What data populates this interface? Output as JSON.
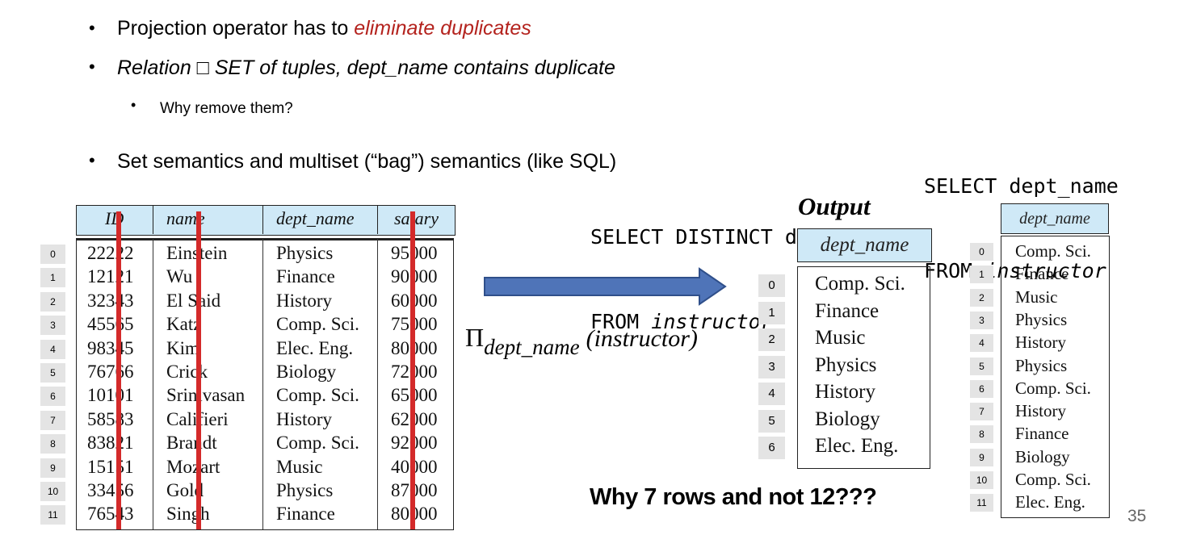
{
  "bullets": [
    {
      "text_before": "Projection operator has to ",
      "emphasis": "eliminate duplicates"
    },
    {
      "text": "Relation □ SET of tuples, dept_name contains duplicate"
    },
    {
      "text": "Why remove them?"
    },
    {
      "text": "Set semantics and multiset (“bag”) semantics (like SQL)"
    }
  ],
  "sql_all": {
    "line1": "SELECT dept_name",
    "line2_kw": "FROM ",
    "line2_table": "instructor"
  },
  "sql_distinct": {
    "line1": "SELECT DISTINCT dept_name",
    "line2_kw": "FROM ",
    "line2_table": "instructor",
    "output_label": "Output"
  },
  "projection": {
    "symbol": "Π",
    "subscript": "dept_name",
    "argument": "(instructor)"
  },
  "instructor_table": {
    "headers": [
      "ID",
      "name",
      "dept_name",
      "salary"
    ],
    "row_index": [
      "0",
      "1",
      "2",
      "3",
      "4",
      "5",
      "6",
      "7",
      "8",
      "9",
      "10",
      "11"
    ],
    "rows": [
      [
        "22222",
        "Einstein",
        "Physics",
        "95000"
      ],
      [
        "12121",
        "Wu",
        "Finance",
        "90000"
      ],
      [
        "32343",
        "El Said",
        "History",
        "60000"
      ],
      [
        "45565",
        "Katz",
        "Comp. Sci.",
        "75000"
      ],
      [
        "98345",
        "Kim",
        "Elec. Eng.",
        "80000"
      ],
      [
        "76766",
        "Crick",
        "Biology",
        "72000"
      ],
      [
        "10101",
        "Srinivasan",
        "Comp. Sci.",
        "65000"
      ],
      [
        "58583",
        "Califieri",
        "History",
        "62000"
      ],
      [
        "83821",
        "Brandt",
        "Comp. Sci.",
        "92000"
      ],
      [
        "15151",
        "Mozart",
        "Music",
        "40000"
      ],
      [
        "33456",
        "Gold",
        "Physics",
        "87000"
      ],
      [
        "76543",
        "Singh",
        "Finance",
        "80000"
      ]
    ]
  },
  "distinct_result": {
    "header": "dept_name",
    "row_index": [
      "0",
      "1",
      "2",
      "3",
      "4",
      "5",
      "6"
    ],
    "values": [
      "Comp. Sci.",
      "Finance",
      "Music",
      "Physics",
      "History",
      "Biology",
      "Elec. Eng."
    ]
  },
  "bag_result": {
    "header": "dept_name",
    "row_index": [
      "0",
      "1",
      "2",
      "3",
      "4",
      "5",
      "6",
      "7",
      "8",
      "9",
      "10",
      "11"
    ],
    "values": [
      "Comp. Sci.",
      "Finance",
      "Music",
      "Physics",
      "History",
      "Physics",
      "Comp. Sci.",
      "History",
      "Finance",
      "Biology",
      "Comp. Sci.",
      "Elec. Eng."
    ]
  },
  "question": "Why 7 rows and not 12???",
  "page_number": "35",
  "colors": {
    "emphasis": "#b4231e",
    "header_fill": "#cfe9f7",
    "strike": "#d42a2a",
    "arrow_fill": "#4f74b8",
    "arrow_stroke": "#2f4f8a"
  }
}
